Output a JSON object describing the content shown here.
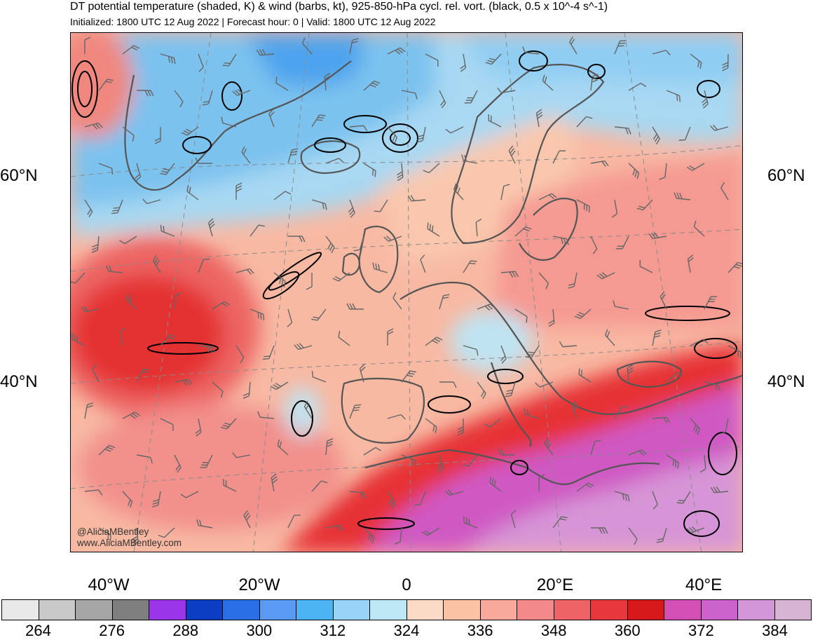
{
  "title": "DT potential temperature (shaded, K) & wind (barbs, kt), 925-850-hPa cycl. rel. vort. (black, 0.5 x 10^-4 s^-1)",
  "subtitle": "Initialized: 1800 UTC 12 Aug 2022 | Forecast hour: 0 | Valid: 1800 UTC 12 Aug 2022",
  "credit": {
    "handle": "@AliciaMBentley",
    "url": "www.AliciaMBentley.com"
  },
  "axes": {
    "lat_labels": [
      "60°N",
      "40°N"
    ],
    "lon_labels": [
      "40°W",
      "20°W",
      "0",
      "20°E",
      "40°E"
    ]
  },
  "colorbar": {
    "labels": [
      "264",
      "276",
      "288",
      "300",
      "312",
      "324",
      "336",
      "348",
      "360",
      "372",
      "384"
    ],
    "colors": [
      "#e9e9e9",
      "#c8c8c8",
      "#a5a5a5",
      "#7f7f7f",
      "#9a35e8",
      "#0c3ec3",
      "#2b6fe6",
      "#5a9af5",
      "#4ab4f2",
      "#98d4f6",
      "#bde7f4",
      "#fbdac6",
      "#fbc2a3",
      "#f8a99c",
      "#f18a88",
      "#ee6466",
      "#e8383c",
      "#d8191c",
      "#d24fb6",
      "#cc62cc",
      "#d396d8",
      "#d7b3d4"
    ]
  },
  "map_colors": {
    "land_outline": "#555555",
    "vorticity": "#000000",
    "gridline": "#8a8a8a",
    "barb": "#666666"
  }
}
